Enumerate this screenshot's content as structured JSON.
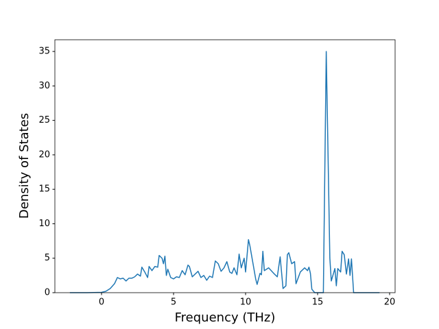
{
  "chart_data": {
    "type": "line",
    "xlabel": "Frequency (THz)",
    "ylabel": "Density of States",
    "x": [
      -2.2,
      -1,
      0,
      0.3,
      0.6,
      0.9,
      1.1,
      1.3,
      1.5,
      1.7,
      1.9,
      2.1,
      2.3,
      2.5,
      2.7,
      2.8,
      3.0,
      3.2,
      3.3,
      3.5,
      3.7,
      3.9,
      4.0,
      4.2,
      4.3,
      4.4,
      4.5,
      4.6,
      4.8,
      5.0,
      5.2,
      5.4,
      5.6,
      5.8,
      6.0,
      6.1,
      6.3,
      6.5,
      6.7,
      6.9,
      7.1,
      7.3,
      7.5,
      7.7,
      7.9,
      8.1,
      8.3,
      8.5,
      8.7,
      8.9,
      9.05,
      9.2,
      9.4,
      9.55,
      9.7,
      9.9,
      10.0,
      10.2,
      10.3,
      10.5,
      10.7,
      10.8,
      11.0,
      11.1,
      11.2,
      11.3,
      11.6,
      12.0,
      12.2,
      12.4,
      12.6,
      12.8,
      12.9,
      13.0,
      13.2,
      13.4,
      13.5,
      13.8,
      14.1,
      14.3,
      14.4,
      14.5,
      14.6,
      14.8,
      15.4,
      15.6,
      15.85,
      15.95,
      16.2,
      16.3,
      16.4,
      16.6,
      16.7,
      16.85,
      17.0,
      17.15,
      17.25,
      17.35,
      17.5,
      19.3
    ],
    "values": [
      0,
      0,
      0.05,
      0.2,
      0.6,
      1.3,
      2.2,
      2.0,
      2.1,
      1.7,
      2.1,
      2.1,
      2.3,
      2.7,
      2.4,
      3.7,
      3.0,
      2.2,
      3.8,
      3.2,
      3.8,
      3.7,
      5.4,
      5.0,
      4.2,
      5.3,
      2.5,
      3.4,
      2.2,
      2.0,
      2.3,
      2.2,
      3.2,
      2.6,
      4.0,
      3.8,
      2.3,
      2.7,
      3.1,
      2.2,
      2.5,
      1.8,
      2.4,
      2.2,
      4.6,
      4.2,
      3.1,
      3.6,
      4.5,
      3.0,
      2.8,
      3.6,
      2.6,
      5.6,
      3.6,
      5.0,
      3.0,
      7.7,
      6.8,
      4.4,
      2.0,
      1.2,
      2.8,
      2.6,
      6.0,
      3.2,
      3.6,
      2.7,
      2.3,
      5.2,
      0.6,
      1.0,
      5.5,
      5.8,
      4.2,
      4.5,
      1.3,
      3.0,
      3.6,
      3.2,
      3.7,
      2.8,
      0.5,
      0,
      0,
      35,
      5,
      1.7,
      3.5,
      1.0,
      3.5,
      3.0,
      6.0,
      5.5,
      2.7,
      4.9,
      2.5,
      4.9,
      0,
      0
    ],
    "color": "#1f77b4",
    "xlim": [
      -3.24,
      20.38
    ],
    "xticks": [
      0,
      5,
      10,
      15,
      20
    ],
    "ylim": [
      0,
      36.7
    ],
    "yticks": [
      0,
      5,
      10,
      15,
      20,
      25,
      30,
      35
    ],
    "grid": false
  }
}
